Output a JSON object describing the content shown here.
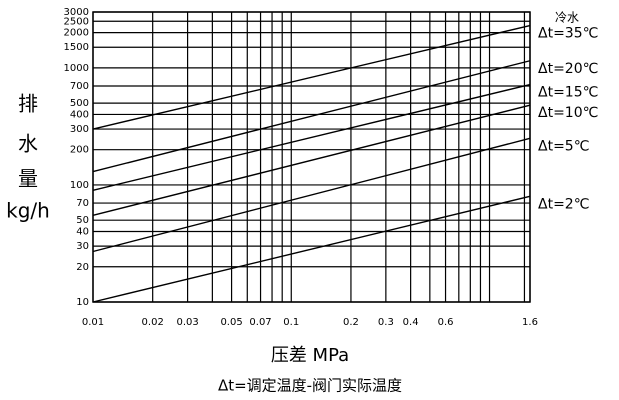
{
  "chart_data": {
    "type": "line",
    "ylabel_lines": [
      "排",
      "水",
      "量",
      "kg/h"
    ],
    "xlabel": "压差    MPa",
    "footnote": "Δt=调定温度-阀门实际温度",
    "annotation": "冷水",
    "xlog": true,
    "ylog": true,
    "grid": true,
    "xlim": [
      0.01,
      1.6
    ],
    "ylim": [
      10,
      3000
    ],
    "xticks": [
      0.01,
      0.02,
      0.03,
      0.05,
      0.07,
      0.1,
      0.2,
      0.3,
      0.4,
      0.6,
      1.6
    ],
    "x_grid": [
      0.04,
      0.06,
      0.08,
      0.09,
      0.5,
      0.7,
      0.8,
      0.9,
      1.0,
      1.5
    ],
    "yticks": [
      10,
      20,
      30,
      40,
      50,
      70,
      100,
      200,
      300,
      400,
      500,
      700,
      1000,
      1500,
      2000,
      2500,
      3000
    ],
    "x": [
      0.01,
      1.6
    ],
    "series": [
      {
        "name": "Δt=35℃",
        "color": "#000000",
        "values": [
          300,
          2300
        ]
      },
      {
        "name": "Δt=20℃",
        "color": "#000000",
        "values": [
          130,
          1150
        ]
      },
      {
        "name": "Δt=15℃",
        "color": "#000000",
        "values": [
          90,
          720
        ]
      },
      {
        "name": "Δt=10℃",
        "color": "#000000",
        "values": [
          55,
          480
        ]
      },
      {
        "name": "Δt=5℃",
        "color": "#000000",
        "values": [
          27,
          250
        ]
      },
      {
        "name": "Δt=2℃",
        "color": "#000000",
        "values": [
          10,
          80
        ]
      }
    ]
  }
}
